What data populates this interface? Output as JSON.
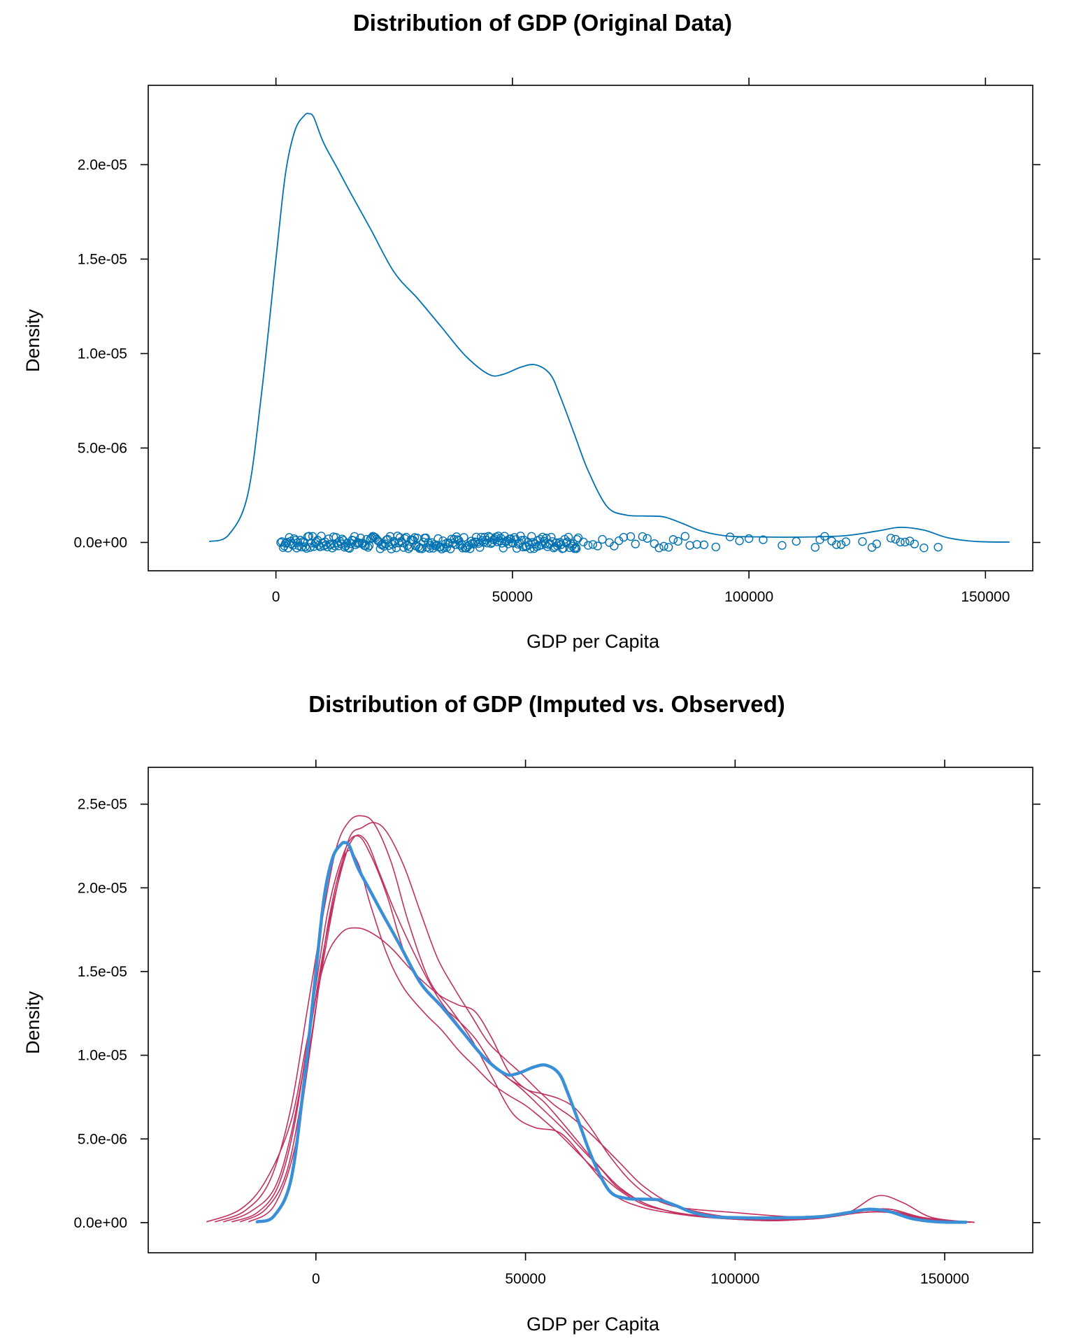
{
  "chart_data": [
    {
      "type": "line",
      "title": "Distribution of GDP (Original Data)",
      "xlabel": "GDP per Capita",
      "ylabel": "Density",
      "xlim": [
        -27000,
        160000
      ],
      "ylim": [
        -1.5e-06,
        2.42e-05
      ],
      "x_ticks": [
        0,
        50000,
        100000,
        150000
      ],
      "x_tick_labels": [
        "0",
        "50000",
        "100000",
        "150000"
      ],
      "y_ticks": [
        0,
        5e-06,
        1e-05,
        1.5e-05,
        2e-05
      ],
      "y_tick_labels": [
        "0.0e+00",
        "5.0e-06",
        "1.0e-05",
        "1.5e-05",
        "2.0e-05"
      ],
      "grid": false,
      "colors": {
        "observed": "#0072b2"
      },
      "series": [
        {
          "x": [
            -14000,
            -10000,
            -6000,
            -3000,
            0,
            2000,
            4000,
            6000,
            7000,
            8000,
            10000,
            13000,
            16000,
            20000,
            25000,
            30000,
            35000,
            40000,
            45000,
            48000,
            52000,
            55000,
            58000,
            60000,
            63000,
            66000,
            70000,
            74000,
            78000,
            82000,
            86000,
            90000,
            95000,
            100000,
            110000,
            120000,
            127000,
            132000,
            137000,
            142000,
            148000,
            155000
          ],
          "values": [
            5e-08,
            4e-07,
            2.5e-06,
            8e-06,
            1.5e-05,
            1.95e-05,
            2.18e-05,
            2.26e-05,
            2.27e-05,
            2.25e-05,
            2.12e-05,
            1.98e-05,
            1.84e-05,
            1.66e-05,
            1.43e-05,
            1.29e-05,
            1.14e-05,
            9.9e-06,
            8.9e-06,
            8.9e-06,
            9.3e-06,
            9.4e-06,
            8.9e-06,
            7.8e-06,
            5.8e-06,
            3.8e-06,
            1.9e-06,
            1.45e-06,
            1.4e-06,
            1.35e-06,
            1e-06,
            6e-07,
            3.5e-07,
            3e-07,
            2.8e-07,
            3.5e-07,
            6e-07,
            8e-07,
            6.5e-07,
            2.5e-07,
            5e-08,
            2e-08
          ]
        }
      ],
      "rug": {
        "dense_range": [
          1000,
          64000
        ],
        "jitter": 3.5e-07,
        "points": [
          63500,
          65000,
          66000,
          67000,
          68000,
          69000,
          70500,
          71500,
          72500,
          73500,
          75000,
          76000,
          77500,
          78500,
          80000,
          81000,
          82000,
          83000,
          84000,
          85000,
          86500,
          87500,
          89000,
          90500,
          93000,
          96000,
          98000,
          100000,
          103000,
          107000,
          110000,
          114000,
          115000,
          116000,
          117500,
          118500,
          119500,
          120500,
          124000,
          126000,
          127000,
          130000,
          131000,
          132000,
          133000,
          134000,
          135000,
          137000,
          140000
        ]
      }
    },
    {
      "type": "line",
      "title": "Distribution of GDP (Imputed vs. Observed)",
      "xlabel": "GDP per Capita",
      "ylabel": "Density",
      "xlim": [
        -40000,
        171000
      ],
      "ylim": [
        -1.8e-06,
        2.72e-05
      ],
      "x_ticks": [
        0,
        50000,
        100000,
        150000
      ],
      "x_tick_labels": [
        "0",
        "50000",
        "100000",
        "150000"
      ],
      "y_ticks": [
        0,
        5e-06,
        1e-05,
        1.5e-05,
        2e-05,
        2.5e-05
      ],
      "y_tick_labels": [
        "0.0e+00",
        "5.0e-06",
        "1.0e-05",
        "1.5e-05",
        "2.0e-05",
        "2.5e-05"
      ],
      "grid": false,
      "colors": {
        "observed": "#3a8fd6",
        "imputed": "#c2305e"
      },
      "series": [
        {
          "role": "observed",
          "x": [
            -14000,
            -10000,
            -6000,
            -3000,
            0,
            2000,
            4000,
            6000,
            7000,
            8000,
            10000,
            13000,
            16000,
            20000,
            25000,
            30000,
            35000,
            40000,
            45000,
            48000,
            52000,
            55000,
            58000,
            60000,
            63000,
            66000,
            70000,
            74000,
            78000,
            82000,
            86000,
            90000,
            95000,
            100000,
            110000,
            120000,
            127000,
            132000,
            137000,
            142000,
            148000,
            155000
          ],
          "values": [
            5e-08,
            4e-07,
            2.5e-06,
            8e-06,
            1.5e-05,
            1.95e-05,
            2.18e-05,
            2.26e-05,
            2.27e-05,
            2.25e-05,
            2.12e-05,
            1.98e-05,
            1.84e-05,
            1.66e-05,
            1.43e-05,
            1.29e-05,
            1.14e-05,
            9.9e-06,
            8.9e-06,
            8.9e-06,
            9.3e-06,
            9.4e-06,
            8.9e-06,
            7.8e-06,
            5.8e-06,
            3.8e-06,
            1.9e-06,
            1.45e-06,
            1.4e-06,
            1.35e-06,
            1e-06,
            6e-07,
            3.5e-07,
            3e-07,
            2.8e-07,
            3.5e-07,
            6e-07,
            8e-07,
            6.5e-07,
            2.5e-07,
            5e-08,
            2e-08
          ]
        },
        {
          "role": "imputed",
          "x": [
            -26000,
            -18000,
            -12000,
            -6000,
            -2000,
            2000,
            6000,
            10000,
            14000,
            18000,
            22000,
            26000,
            30000,
            34000,
            38000,
            42000,
            46000,
            50000,
            54000,
            58000,
            62000,
            66000,
            70000,
            75000,
            80000,
            85000,
            90000,
            100000,
            110000,
            120000,
            127000,
            134000,
            140000,
            147000,
            157000
          ],
          "values": [
            5e-08,
            8e-07,
            2.5e-06,
            6e-06,
            1.1e-05,
            1.55e-05,
            1.73e-05,
            1.76e-05,
            1.72e-05,
            1.64e-05,
            1.53e-05,
            1.43e-05,
            1.35e-05,
            1.3e-05,
            1.26e-05,
            1.1e-05,
            9e-06,
            8e-06,
            7.7e-06,
            7.4e-06,
            6.8e-06,
            5.5e-06,
            4e-06,
            2.5e-06,
            1.5e-06,
            1e-06,
            8e-07,
            6e-07,
            4e-07,
            3e-07,
            6e-07,
            1.6e-06,
            1.2e-06,
            3e-07,
            2e-08
          ]
        },
        {
          "role": "imputed",
          "x": [
            -24000,
            -17000,
            -11000,
            -6000,
            -2000,
            2000,
            5000,
            8000,
            11000,
            14000,
            18000,
            22000,
            27000,
            32000,
            37000,
            42000,
            47000,
            52000,
            57000,
            60000,
            64000,
            68000,
            72000,
            78000,
            84000,
            90000,
            100000,
            110000,
            120000,
            130000,
            137000,
            145000,
            157000
          ],
          "values": [
            5e-08,
            7e-07,
            2.5e-06,
            6.8e-06,
            1.28e-05,
            1.88e-05,
            2.25e-05,
            2.4e-05,
            2.43e-05,
            2.38e-05,
            2.15e-05,
            1.8e-05,
            1.45e-05,
            1.28e-05,
            1.1e-05,
            8.7e-06,
            6.5e-06,
            5.7e-06,
            5.5e-06,
            5e-06,
            3.8e-06,
            2.6e-06,
            1.5e-06,
            9e-07,
            6e-07,
            4e-07,
            2e-07,
            1.2e-07,
            3e-07,
            7e-07,
            8e-07,
            2.5e-07,
            2e-08
          ]
        },
        {
          "role": "imputed",
          "x": [
            -22000,
            -16000,
            -10000,
            -6000,
            -2000,
            2000,
            6000,
            9000,
            12000,
            15000,
            19000,
            24000,
            29000,
            34000,
            39000,
            44000,
            49000,
            54000,
            59000,
            63000,
            68000,
            72000,
            78000,
            84000,
            90000,
            100000,
            110000,
            120000,
            130000,
            137000,
            145000,
            157000
          ],
          "values": [
            5e-08,
            6e-07,
            2e-06,
            5.2e-06,
            1.05e-05,
            1.65e-05,
            2.1e-05,
            2.3e-05,
            2.28e-05,
            2.1e-05,
            1.85e-05,
            1.58e-05,
            1.35e-05,
            1.18e-05,
            1.02e-05,
            9e-06,
            8e-06,
            6.8e-06,
            5.6e-06,
            4.5e-06,
            3.2e-06,
            2.1e-06,
            1.2e-06,
            7e-07,
            4.5e-07,
            2.5e-07,
            2e-07,
            3.5e-07,
            7e-07,
            7e-07,
            2.5e-07,
            2e-08
          ]
        },
        {
          "role": "imputed",
          "x": [
            -20000,
            -14000,
            -9000,
            -5000,
            -1000,
            3000,
            7000,
            10000,
            13000,
            17000,
            21000,
            25000,
            29000,
            33000,
            38000,
            42000,
            46000,
            50000,
            54000,
            58000,
            62000,
            66000,
            72000,
            78000,
            84000,
            90000,
            100000,
            110000,
            120000,
            130000,
            137000,
            145000,
            156000
          ],
          "values": [
            5e-08,
            6e-07,
            2.2e-06,
            6e-06,
            1.25e-05,
            1.88e-05,
            2.23e-05,
            2.31e-05,
            2.2e-05,
            1.95e-05,
            1.62e-05,
            1.43e-05,
            1.31e-05,
            1.23e-05,
            1.1e-05,
            9.5e-06,
            8.6e-06,
            8e-06,
            7.3e-06,
            6.2e-06,
            5e-06,
            3.8e-06,
            2.2e-06,
            1.2e-06,
            7e-07,
            4e-07,
            2e-07,
            1.2e-07,
            3e-07,
            6e-07,
            6e-07,
            2e-07,
            2e-08
          ]
        },
        {
          "role": "imputed",
          "x": [
            -18000,
            -12000,
            -7000,
            -3000,
            1000,
            5000,
            8000,
            11000,
            14000,
            17000,
            21000,
            25000,
            29000,
            33000,
            37000,
            41000,
            45000,
            49000,
            53000,
            57000,
            61000,
            66000,
            72000,
            78000,
            85000,
            92000,
            100000,
            110000,
            120000,
            130000,
            137000,
            145000,
            156000
          ],
          "values": [
            5e-08,
            8e-07,
            3e-06,
            8e-06,
            1.45e-05,
            2e-05,
            2.3e-05,
            2.36e-05,
            2.39e-05,
            2.33e-05,
            2.13e-05,
            1.85e-05,
            1.58e-05,
            1.4e-05,
            1.24e-05,
            1.08e-05,
            9.8e-06,
            8.9e-06,
            7.9e-06,
            7e-06,
            6.3e-06,
            5.2e-06,
            3.7e-06,
            2.2e-06,
            1.1e-06,
            6e-07,
            3e-07,
            1.5e-07,
            3e-07,
            7e-07,
            8e-07,
            3e-07,
            2e-08
          ]
        },
        {
          "role": "imputed",
          "x": [
            -16000,
            -10000,
            -5000,
            -1000,
            3000,
            7000,
            10000,
            13000,
            17000,
            21000,
            26000,
            30000,
            34000,
            38000,
            42000,
            46000,
            50000,
            54000,
            58000,
            62000,
            66000,
            72000,
            78000,
            84000,
            90000,
            100000,
            110000,
            120000,
            130000,
            137000,
            145000,
            156000
          ],
          "values": [
            5e-08,
            1e-06,
            4.5e-06,
            1.1e-05,
            1.8e-05,
            2.2e-05,
            2.15e-05,
            1.9e-05,
            1.6e-05,
            1.4e-05,
            1.25e-05,
            1.15e-05,
            1.03e-05,
            9.3e-06,
            8.3e-06,
            7.6e-06,
            7e-06,
            6.2e-06,
            5.3e-06,
            4.3e-06,
            3.3e-06,
            2e-06,
            1.1e-06,
            7e-07,
            4.5e-07,
            2.5e-07,
            1.5e-07,
            2.5e-07,
            6e-07,
            6.5e-07,
            2e-07,
            2e-08
          ]
        }
      ]
    }
  ]
}
